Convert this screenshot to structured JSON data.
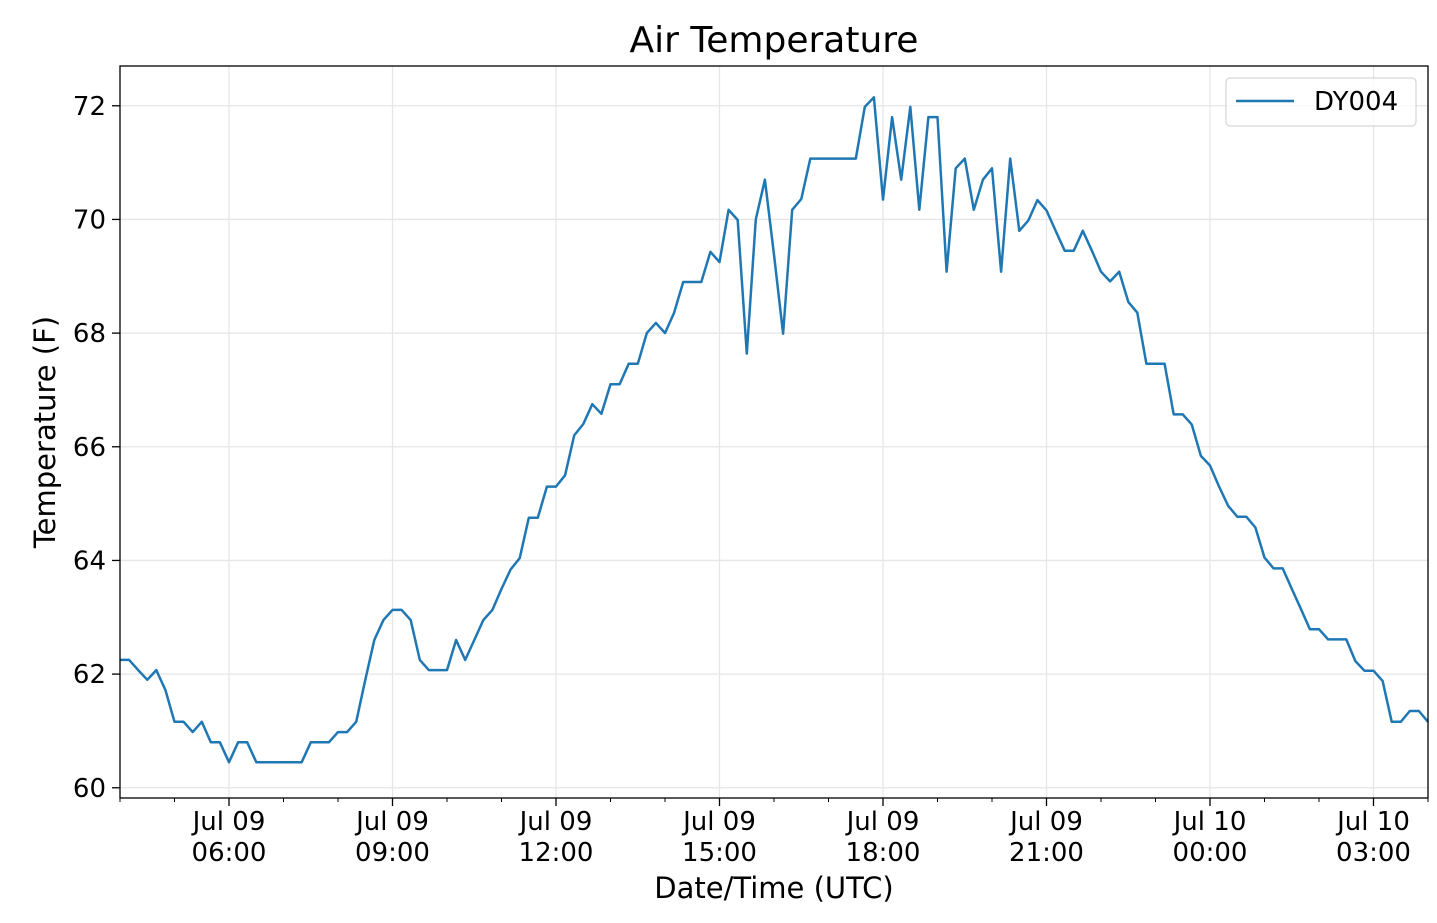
{
  "chart_data": {
    "type": "line",
    "title": "Air Temperature",
    "xlabel": "Date/Time (UTC)",
    "ylabel": "Temperature (F)",
    "x_start": "Jul 09 04:00",
    "x_interval_minutes": 10,
    "xlim_hours_from_start": [
      0,
      24
    ],
    "ylim": [
      59.82,
      72.7
    ],
    "grid": true,
    "legend_position": "top-right",
    "x_ticks": [
      {
        "hours_from_start": 2,
        "line1": "Jul 09",
        "line2": "06:00"
      },
      {
        "hours_from_start": 5,
        "line1": "Jul 09",
        "line2": "09:00"
      },
      {
        "hours_from_start": 8,
        "line1": "Jul 09",
        "line2": "12:00"
      },
      {
        "hours_from_start": 11,
        "line1": "Jul 09",
        "line2": "15:00"
      },
      {
        "hours_from_start": 14,
        "line1": "Jul 09",
        "line2": "18:00"
      },
      {
        "hours_from_start": 17,
        "line1": "Jul 09",
        "line2": "21:00"
      },
      {
        "hours_from_start": 20,
        "line1": "Jul 10",
        "line2": "00:00"
      },
      {
        "hours_from_start": 23,
        "line1": "Jul 10",
        "line2": "03:00"
      }
    ],
    "y_ticks": [
      60,
      62,
      64,
      66,
      68,
      70,
      72
    ],
    "series": [
      {
        "name": "DY004",
        "color": "#1f77b4",
        "values": [
          62.25,
          62.25,
          62.07,
          61.9,
          62.07,
          61.72,
          61.16,
          61.16,
          60.98,
          61.16,
          60.8,
          60.8,
          60.45,
          60.8,
          60.8,
          60.45,
          60.45,
          60.45,
          60.45,
          60.45,
          60.45,
          60.8,
          60.8,
          60.8,
          60.98,
          60.98,
          61.16,
          61.9,
          62.6,
          62.95,
          63.13,
          63.13,
          62.95,
          62.25,
          62.07,
          62.07,
          62.07,
          62.6,
          62.25,
          62.6,
          62.95,
          63.13,
          63.5,
          63.84,
          64.04,
          64.75,
          64.75,
          65.3,
          65.3,
          65.5,
          66.2,
          66.4,
          66.75,
          66.58,
          67.1,
          67.1,
          67.46,
          67.46,
          68.0,
          68.18,
          68.0,
          68.36,
          68.9,
          68.9,
          68.9,
          69.43,
          69.25,
          70.17,
          69.99,
          67.64,
          70.0,
          70.7,
          69.38,
          67.99,
          70.17,
          70.36,
          71.07,
          71.07,
          71.07,
          71.07,
          71.07,
          71.07,
          71.98,
          72.15,
          70.35,
          71.8,
          70.7,
          71.98,
          70.17,
          71.8,
          71.8,
          69.08,
          70.9,
          71.07,
          70.17,
          70.7,
          70.9,
          69.08,
          71.07,
          69.8,
          69.98,
          70.34,
          70.16,
          69.8,
          69.45,
          69.45,
          69.8,
          69.45,
          69.08,
          68.91,
          69.08,
          68.55,
          68.36,
          67.46,
          67.46,
          67.46,
          66.57,
          66.57,
          66.39,
          65.84,
          65.67,
          65.3,
          64.96,
          64.77,
          64.77,
          64.58,
          64.05,
          63.86,
          63.86,
          63.5,
          63.15,
          62.79,
          62.79,
          62.61,
          62.61,
          62.61,
          62.23,
          62.06,
          62.06,
          61.88,
          61.16,
          61.16,
          61.35,
          61.35,
          61.16
        ]
      }
    ]
  }
}
